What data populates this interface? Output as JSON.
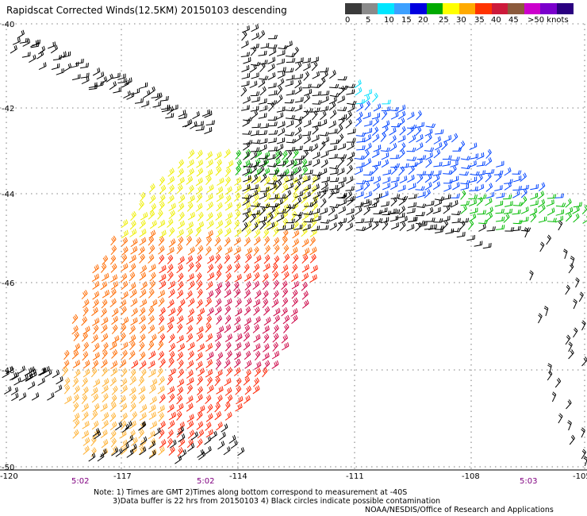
{
  "title": "Rapidscat Corrected Winds(12.5KM) 20150103 descending",
  "legend": {
    "labels": [
      "0",
      "5",
      "10",
      "15",
      "20",
      "25",
      "30",
      "35",
      "40",
      "45",
      ">50 knots"
    ],
    "colors": [
      "#3a3a3a",
      "#8a8a8a",
      "#00e6ff",
      "#3ca0ff",
      "#0000e0",
      "#00aa00",
      "#ffff00",
      "#ffaa00",
      "#ff3300",
      "#cc1a3a",
      "#8b5a3c",
      "#cc00cc",
      "#7a00cc",
      "#2a0080"
    ]
  },
  "axes": {
    "lon_labels": [
      "-120",
      "-117",
      "-114",
      "-111",
      "-108",
      "-105"
    ],
    "lat_labels": [
      "-40",
      "-42",
      "-44",
      "-46",
      "-48",
      "-50"
    ],
    "time_labels": [
      "5:02",
      "5:02",
      "5:03"
    ]
  },
  "notes": [
    "Note: 1) Times are GMT 2)Times along bottom correspond to measurement at -40S",
    "3)Data buffer is 22 hrs from 20150103 4) Black circles indicate possible contamination",
    "NOAA/NESDIS/Office of Research and Applications"
  ],
  "wind_colors": {
    "lt5": "#000000",
    "c15": "#00e0ff",
    "c20": "#0044ff",
    "c25": "#00bb00",
    "c30": "#eeee00",
    "c35": "#ffb030",
    "c40": "#ff6a00",
    "c45": "#ff2200",
    "c50": "#cc0044"
  }
}
